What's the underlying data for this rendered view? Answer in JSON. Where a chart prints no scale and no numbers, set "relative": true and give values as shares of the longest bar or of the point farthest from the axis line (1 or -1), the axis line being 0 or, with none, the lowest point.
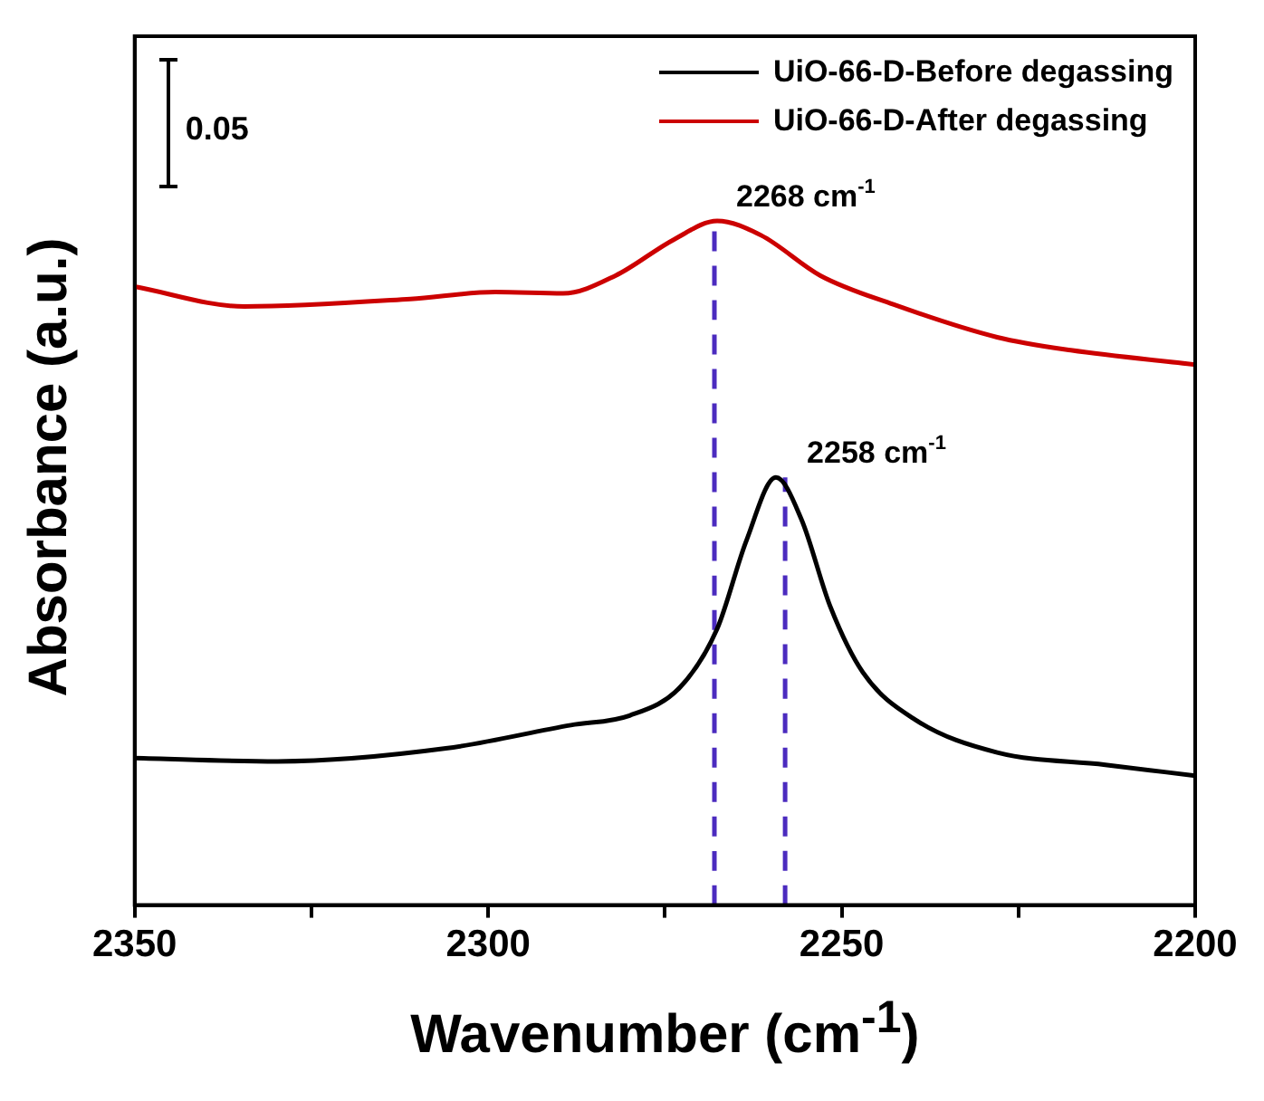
{
  "chart_data": {
    "type": "line",
    "relative": true,
    "xlabel": "Wavenumber (cm$^{-1}$)",
    "ylabel": "Absorbance (a.u.)",
    "xlim": [
      2350,
      2200
    ],
    "xticks": [
      2350,
      {
        "value": 2325,
        "label": null
      },
      2300,
      {
        "value": 2275,
        "label": null
      },
      2250,
      {
        "value": 2225,
        "label": null
      },
      2200
    ],
    "tick_labels": "x",
    "grid": false,
    "legend": "top right",
    "marker": "none",
    "series": [
      {
        "name": "UiO-66-D-Before degassing",
        "color": "#000000",
        "x": [
          2350,
          2329.8,
          2306,
          2288.3,
          2280,
          2272.8,
          2267.6,
          2263.5,
          2259.3,
          2255.7,
          2251.6,
          2247,
          2239.6,
          2228,
          2212.7,
          2200
        ],
        "values": [
          0.215,
          0.21,
          0.229,
          0.263,
          0.277,
          0.319,
          0.404,
          0.532,
          0.625,
          0.564,
          0.436,
          0.34,
          0.271,
          0.223,
          0.205,
          0.189
        ]
      },
      {
        "name": "UiO-66-D-After degassing",
        "color": "#cc0000",
        "x": [
          2350,
          2334.5,
          2311,
          2299,
          2289.4,
          2282,
          2273.7,
          2267.6,
          2261.4,
          2253,
          2242.7,
          2228,
          2217.6,
          2200
        ],
        "values": [
          0.904,
          0.875,
          0.886,
          0.896,
          0.894,
          0.92,
          0.973,
          1,
          0.979,
          0.92,
          0.878,
          0.83,
          0.811,
          0.79
        ]
      },
      {
        "color": "#4b2bbf",
        "line_style": "dashed",
        "x": [
          2268,
          2268
        ],
        "values": [
          0,
          1
        ]
      },
      {
        "color": "#4b2bbf",
        "line_style": "dashed",
        "x": [
          2258,
          2258
        ],
        "values": [
          0,
          0.625
        ]
      }
    ],
    "annotations": [
      "0.05",
      {
        "text": "2268 cm$^{-1}$",
        "x": 2268,
        "y": 1
      },
      {
        "text": "2258 cm$^{-1}$",
        "x": 2258,
        "y": 0.625
      }
    ]
  }
}
